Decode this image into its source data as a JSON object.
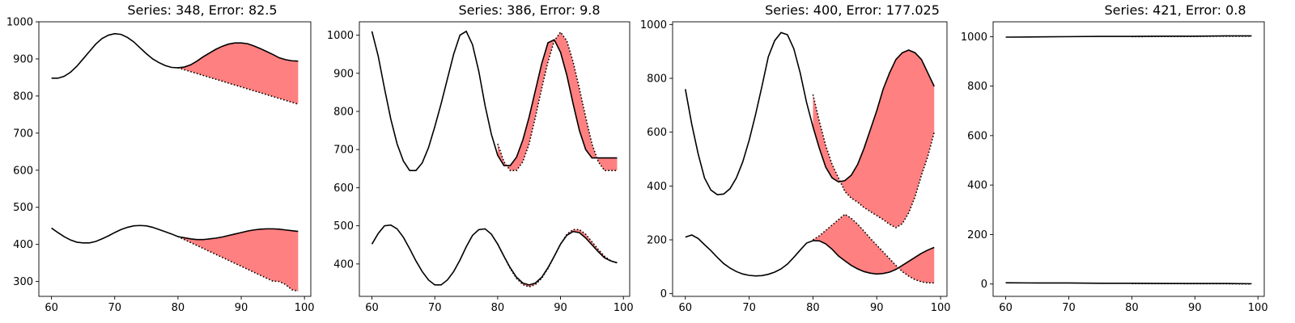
{
  "chart_data": [
    {
      "type": "line",
      "title": "Series: 348, Error: 82.5",
      "xlim": [
        58,
        101
      ],
      "ylim": [
        260,
        1000
      ],
      "xticks": [
        60,
        70,
        80,
        90,
        100
      ],
      "yticks": [
        300,
        400,
        500,
        600,
        700,
        800,
        900,
        1000
      ],
      "series": [
        {
          "role": "upper-actual",
          "x": [
            60,
            61,
            62,
            63,
            64,
            65,
            66,
            67,
            68,
            69,
            70,
            71,
            72,
            73,
            74,
            75,
            76,
            77,
            78,
            79,
            80,
            81,
            82,
            83,
            84,
            85,
            86,
            87,
            88,
            89,
            90,
            91,
            92,
            93,
            94,
            95,
            96,
            97,
            98,
            99
          ],
          "y": [
            848,
            848,
            853,
            864,
            880,
            900,
            920,
            940,
            955,
            964,
            968,
            966,
            958,
            946,
            930,
            914,
            900,
            890,
            882,
            877,
            876,
            878,
            884,
            894,
            906,
            916,
            926,
            934,
            940,
            943,
            943,
            941,
            935,
            928,
            920,
            912,
            903,
            898,
            895,
            894
          ]
        },
        {
          "role": "upper-forecast",
          "x": [
            80,
            99
          ],
          "y": [
            876,
            778
          ]
        },
        {
          "role": "lower-actual",
          "x": [
            60,
            61,
            62,
            63,
            64,
            65,
            66,
            67,
            68,
            69,
            70,
            71,
            72,
            73,
            74,
            75,
            76,
            77,
            78,
            79,
            80,
            81,
            82,
            83,
            84,
            85,
            86,
            87,
            88,
            89,
            90,
            91,
            92,
            93,
            94,
            95,
            96,
            97,
            98,
            99
          ],
          "y": [
            444,
            432,
            421,
            412,
            406,
            404,
            404,
            408,
            415,
            423,
            432,
            440,
            446,
            450,
            451,
            450,
            446,
            440,
            434,
            428,
            421,
            418,
            415,
            413,
            413,
            415,
            417,
            420,
            424,
            428,
            432,
            436,
            439,
            441,
            442,
            442,
            441,
            439,
            437,
            435
          ]
        },
        {
          "role": "lower-forecast",
          "x": [
            80,
            81,
            82,
            83,
            84,
            85,
            86,
            87,
            88,
            89,
            90,
            91,
            92,
            93,
            94,
            95,
            96,
            97,
            98,
            99
          ],
          "y": [
            421,
            413,
            405,
            397,
            389,
            381,
            373,
            365,
            357,
            349,
            341,
            333,
            325,
            317,
            309,
            301,
            300,
            292,
            278,
            274
          ]
        }
      ]
    },
    {
      "type": "line",
      "title": "Series: 386, Error: 9.8",
      "xlim": [
        58,
        101
      ],
      "ylim": [
        315,
        1035
      ],
      "xticks": [
        60,
        70,
        80,
        90,
        100
      ],
      "yticks": [
        400,
        500,
        600,
        700,
        800,
        900,
        1000
      ],
      "series": [
        {
          "role": "upper-actual",
          "x": [
            60,
            61,
            62,
            63,
            64,
            65,
            66,
            67,
            68,
            69,
            70,
            71,
            72,
            73,
            74,
            75,
            76,
            77,
            78,
            79,
            80,
            81,
            82,
            83,
            84,
            85,
            86,
            87,
            88,
            89,
            90,
            91,
            92,
            93,
            94,
            95,
            96,
            97,
            98,
            99
          ],
          "y": [
            1010,
            945,
            860,
            780,
            715,
            670,
            645,
            645,
            665,
            705,
            760,
            820,
            885,
            950,
            1000,
            1010,
            975,
            905,
            815,
            740,
            685,
            658,
            658,
            680,
            725,
            785,
            855,
            925,
            980,
            988,
            955,
            895,
            820,
            750,
            700,
            678,
            678,
            678,
            678,
            678
          ]
        },
        {
          "role": "upper-forecast",
          "x": [
            80,
            81,
            82,
            83,
            84,
            85,
            86,
            87,
            88,
            89,
            90,
            91,
            92,
            93,
            94,
            95,
            96,
            97,
            98,
            99
          ],
          "y": [
            715,
            668,
            645,
            645,
            668,
            715,
            785,
            860,
            930,
            985,
            1008,
            985,
            930,
            860,
            785,
            715,
            668,
            645,
            645,
            645
          ]
        },
        {
          "role": "lower-actual",
          "x": [
            60,
            61,
            62,
            63,
            64,
            65,
            66,
            67,
            68,
            69,
            70,
            71,
            72,
            73,
            74,
            75,
            76,
            77,
            78,
            79,
            80,
            81,
            82,
            83,
            84,
            85,
            86,
            87,
            88,
            89,
            90,
            91,
            92,
            93,
            94,
            95,
            96,
            97,
            98,
            99
          ],
          "y": [
            452,
            480,
            500,
            502,
            492,
            470,
            440,
            408,
            380,
            358,
            345,
            345,
            358,
            380,
            410,
            445,
            475,
            490,
            492,
            478,
            452,
            420,
            390,
            365,
            350,
            345,
            350,
            365,
            390,
            420,
            452,
            475,
            485,
            482,
            468,
            450,
            432,
            416,
            408,
            403
          ]
        },
        {
          "role": "lower-forecast",
          "x": [
            80,
            81,
            82,
            83,
            84,
            85,
            86,
            87,
            88,
            89,
            90,
            91,
            92,
            93,
            94,
            95,
            96,
            97,
            98,
            99
          ],
          "y": [
            452,
            420,
            388,
            362,
            346,
            340,
            346,
            362,
            388,
            420,
            452,
            478,
            490,
            490,
            478,
            458,
            438,
            420,
            408,
            403
          ]
        }
      ]
    },
    {
      "type": "line",
      "title": "Series: 400, Error: 177.025",
      "xlim": [
        58,
        101
      ],
      "ylim": [
        -10,
        1010
      ],
      "xticks": [
        60,
        70,
        80,
        90,
        100
      ],
      "yticks": [
        0,
        200,
        400,
        600,
        800,
        1000
      ],
      "series": [
        {
          "role": "upper-actual",
          "x": [
            60,
            61,
            62,
            63,
            64,
            65,
            66,
            67,
            68,
            69,
            70,
            71,
            72,
            73,
            74,
            75,
            76,
            77,
            78,
            79,
            80,
            81,
            82,
            83,
            84,
            85,
            86,
            87,
            88,
            89,
            90,
            91,
            92,
            93,
            94,
            95,
            96,
            97,
            98,
            99
          ],
          "y": [
            760,
            630,
            520,
            430,
            385,
            368,
            370,
            390,
            430,
            490,
            570,
            665,
            770,
            880,
            940,
            970,
            962,
            910,
            820,
            710,
            620,
            540,
            470,
            430,
            415,
            420,
            440,
            480,
            540,
            610,
            680,
            760,
            820,
            870,
            895,
            905,
            895,
            870,
            820,
            770
          ]
        },
        {
          "role": "upper-forecast",
          "x": [
            80,
            81,
            82,
            83,
            84,
            85,
            86,
            87,
            88,
            89,
            90,
            91,
            92,
            93,
            94,
            95,
            96,
            97,
            98,
            99
          ],
          "y": [
            740,
            640,
            550,
            480,
            430,
            380,
            355,
            340,
            320,
            305,
            290,
            275,
            258,
            245,
            260,
            300,
            360,
            440,
            510,
            600
          ]
        },
        {
          "role": "lower-actual",
          "x": [
            60,
            61,
            62,
            63,
            64,
            65,
            66,
            67,
            68,
            69,
            70,
            71,
            72,
            73,
            74,
            75,
            76,
            77,
            78,
            79,
            80,
            81,
            82,
            83,
            84,
            85,
            86,
            87,
            88,
            89,
            90,
            91,
            92,
            93,
            94,
            95,
            96,
            97,
            98,
            99
          ],
          "y": [
            210,
            218,
            205,
            182,
            160,
            135,
            112,
            95,
            82,
            73,
            68,
            66,
            67,
            72,
            80,
            92,
            110,
            135,
            162,
            188,
            197,
            196,
            185,
            165,
            140,
            122,
            105,
            92,
            82,
            76,
            73,
            75,
            80,
            90,
            105,
            120,
            135,
            150,
            162,
            172
          ]
        },
        {
          "role": "lower-forecast",
          "x": [
            80,
            81,
            82,
            83,
            84,
            85,
            86,
            87,
            88,
            89,
            90,
            91,
            92,
            93,
            94,
            95,
            96,
            97,
            98,
            99
          ],
          "y": [
            200,
            215,
            235,
            255,
            275,
            295,
            280,
            258,
            232,
            205,
            180,
            155,
            130,
            105,
            82,
            65,
            52,
            44,
            40,
            40
          ]
        }
      ]
    },
    {
      "type": "line",
      "title": "Series: 421, Error: 0.8",
      "xlim": [
        58,
        101
      ],
      "ylim": [
        -50,
        1060
      ],
      "xticks": [
        60,
        70,
        80,
        90,
        100
      ],
      "yticks": [
        0,
        200,
        400,
        600,
        800,
        1000
      ],
      "series": [
        {
          "role": "upper-actual",
          "x": [
            60,
            65,
            70,
            75,
            80,
            85,
            90,
            95,
            99
          ],
          "y": [
            998,
            999,
            1000,
            1001,
            1001,
            1002,
            1002,
            1003,
            1003
          ]
        },
        {
          "role": "upper-forecast",
          "x": [
            80,
            85,
            90,
            95,
            99
          ],
          "y": [
            1000,
            1001,
            1001,
            1002,
            1002
          ]
        },
        {
          "role": "lower-actual",
          "x": [
            60,
            65,
            70,
            75,
            80,
            85,
            90,
            95,
            99
          ],
          "y": [
            5,
            4,
            4,
            3,
            3,
            2,
            2,
            2,
            1
          ]
        },
        {
          "role": "lower-forecast",
          "x": [
            80,
            85,
            90,
            95,
            99
          ],
          "y": [
            2,
            2,
            1,
            1,
            0
          ]
        }
      ]
    }
  ],
  "colors": {
    "line": "#000000",
    "error_fill": "#ff8080",
    "axis": "#000000"
  }
}
